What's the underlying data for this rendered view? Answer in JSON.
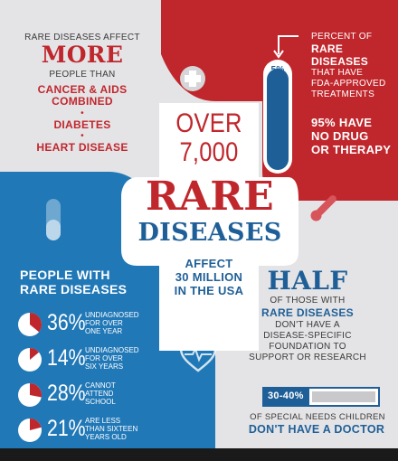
{
  "colors": {
    "red": "#c0272d",
    "blue": "#2178b7",
    "navy": "#1f5f97",
    "gray": "#e4e4e6",
    "ink": "#3a3a3a",
    "white": "#ffffff"
  },
  "top_left": {
    "line1": "RARE DISEASES AFFECT",
    "more": "MORE",
    "line2": "PEOPLE THAN",
    "item1a": "CANCER & AIDS",
    "item1b": "COMBINED",
    "item2": "DIABETES",
    "item3": "HEART DISEASE"
  },
  "top_right": {
    "line1": "PERCENT OF",
    "line2": "RARE DISEASES",
    "line3": "THAT HAVE",
    "line4": "FDA-APPROVED",
    "line5": "TREATMENTS",
    "vial_label": "5%",
    "vial_fill_percent": 95,
    "stat1": "95% HAVE",
    "stat2": "NO DRUG",
    "stat3": "OR THERAPY"
  },
  "center": {
    "over": "OVER",
    "count": "7,000",
    "rare": "RARE",
    "diseases": "DISEASES",
    "affect1": "AFFECT",
    "affect2": "30 MILLION",
    "affect3": "IN THE USA"
  },
  "bottom_left": {
    "title1": "PEOPLE WITH",
    "title2": "RARE DISEASES",
    "stats": [
      {
        "value": "36%",
        "line1": "UNDIAGNOSED",
        "line2": "FOR OVER",
        "line3": "ONE YEAR",
        "fraction": 0.36
      },
      {
        "value": "14%",
        "line1": "UNDIAGNOSED",
        "line2": "FOR OVER",
        "line3": "SIX YEARS",
        "fraction": 0.14
      },
      {
        "value": "28%",
        "line1": "CANNOT",
        "line2": "ATTEND",
        "line3": "SCHOOL",
        "fraction": 0.28
      },
      {
        "value": "21%",
        "line1": "ARE LESS",
        "line2": "THAN SIXTEEN",
        "line3": "YEARS OLD",
        "fraction": 0.21
      }
    ]
  },
  "bottom_right": {
    "half": "HALF",
    "line1": "OF THOSE WITH",
    "line2": "RARE DISEASES",
    "line3": "DON'T HAVE A",
    "line4": "DISEASE-SPECIFIC",
    "line5": "FOUNDATION TO",
    "line6": "SUPPORT OR RESEARCH",
    "bar_label": "30-40%",
    "bar_fill_fraction": 0.4,
    "line7": "OF SPECIAL NEEDS CHILDREN",
    "line8": "DON'T HAVE A DOCTOR"
  },
  "icons": [
    "medical-cross-icon",
    "pill-capsule-icon",
    "thermometer-icon",
    "heartbeat-icon"
  ]
}
